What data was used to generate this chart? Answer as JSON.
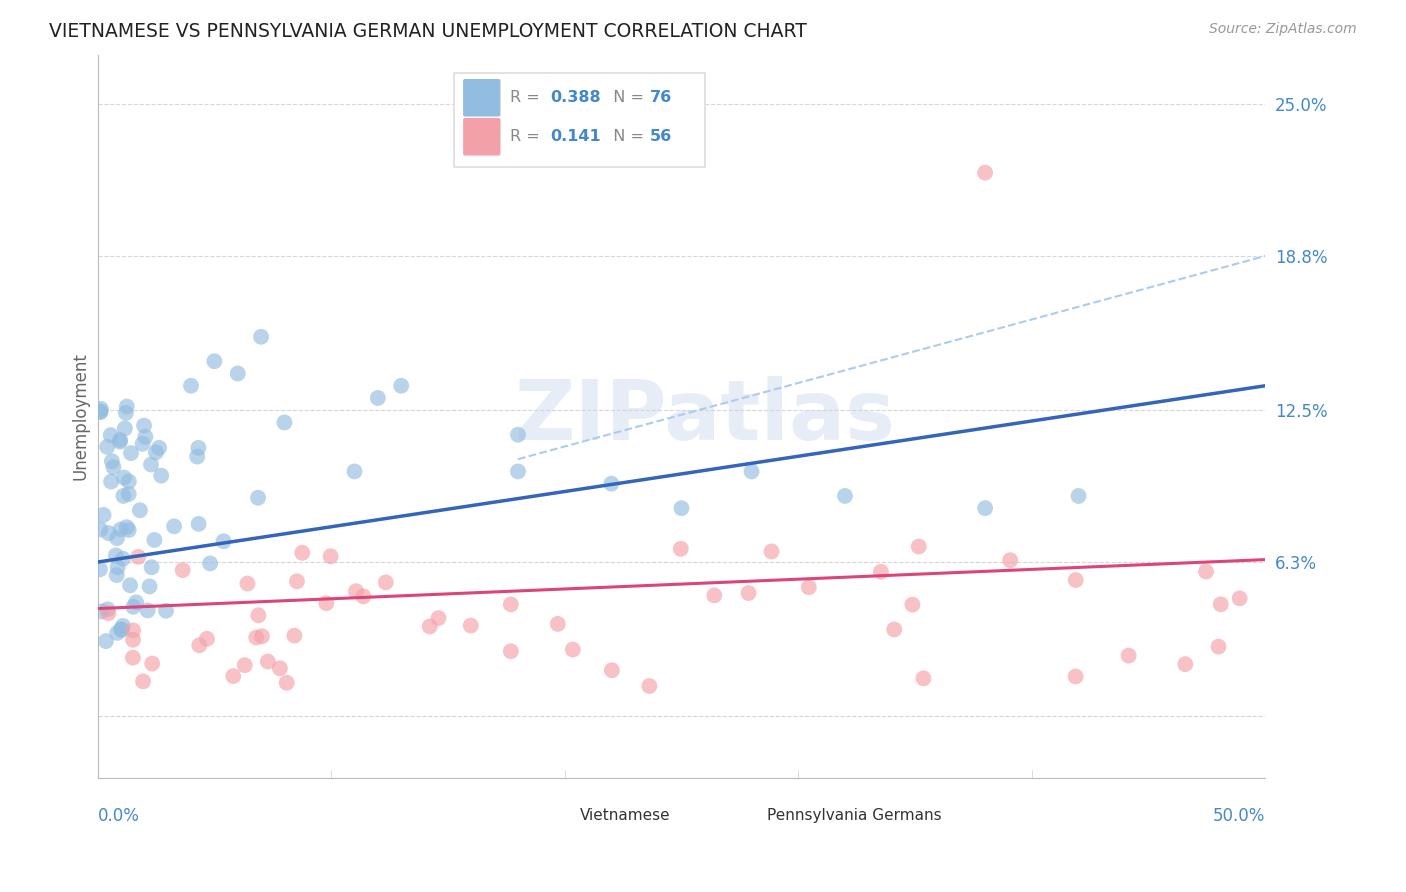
{
  "title": "VIETNAMESE VS PENNSYLVANIA GERMAN UNEMPLOYMENT CORRELATION CHART",
  "source": "Source: ZipAtlas.com",
  "ylabel": "Unemployment",
  "yticks": [
    0.0,
    0.063,
    0.125,
    0.188,
    0.25
  ],
  "ytick_labels": [
    "",
    "6.3%",
    "12.5%",
    "18.8%",
    "25.0%"
  ],
  "xlim": [
    0.0,
    0.5
  ],
  "ylim": [
    -0.025,
    0.27
  ],
  "watermark": "ZIPatlas",
  "blue_color": "#92bce0",
  "pink_color": "#f4a0a8",
  "blue_line_color": "#3366bb",
  "pink_line_color": "#dd4477",
  "dashed_line_color": "#aaccee",
  "axis_label_color": "#4488cc",
  "background_color": "#ffffff",
  "blue_trend_x": [
    0.0,
    0.5
  ],
  "blue_trend_y": [
    0.063,
    0.135
  ],
  "pink_trend_x": [
    0.0,
    0.5
  ],
  "pink_trend_y": [
    0.044,
    0.064
  ],
  "dashed_trend_x": [
    0.18,
    0.5
  ],
  "dashed_trend_y": [
    0.105,
    0.188
  ]
}
